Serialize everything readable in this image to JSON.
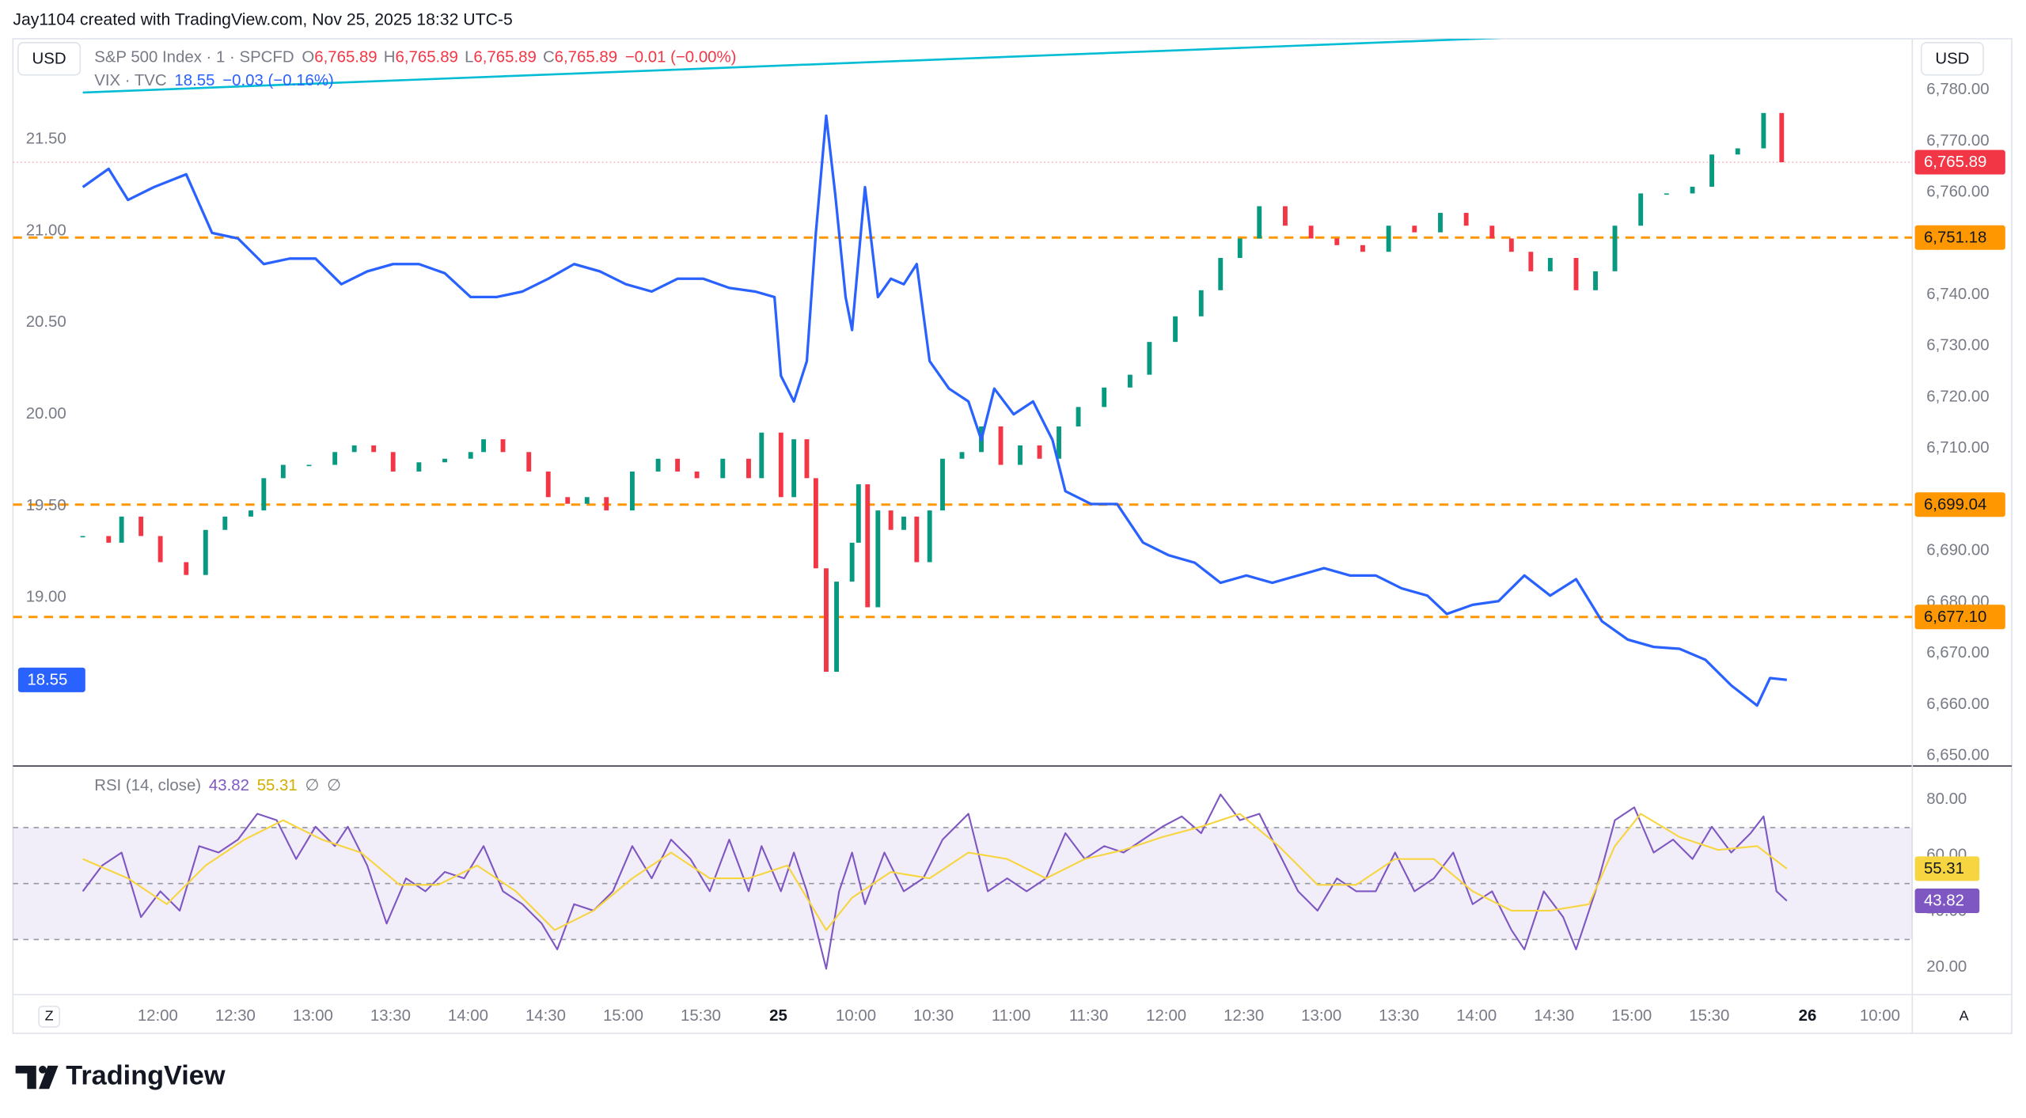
{
  "header": {
    "credit": "Jay1104 created with TradingView.com, Nov 25, 2025 18:32 UTC-5"
  },
  "chart_data": [
    {
      "type": "candlestick",
      "currency_left": "USD",
      "currency_right": "USD",
      "xlim": [
        94,
        828.5
      ],
      "xticks": [
        {
          "value": 150,
          "label": "12:00"
        },
        {
          "value": 180,
          "label": "12:30"
        },
        {
          "value": 210,
          "label": "13:00"
        },
        {
          "value": 240,
          "label": "13:30"
        },
        {
          "value": 270,
          "label": "14:00"
        },
        {
          "value": 300,
          "label": "14:30"
        },
        {
          "value": 330,
          "label": "15:00"
        },
        {
          "value": 360,
          "label": "15:30"
        },
        {
          "value": 390,
          "label": "25"
        },
        {
          "value": 420,
          "label": "10:00"
        },
        {
          "value": 450,
          "label": "10:30"
        },
        {
          "value": 480,
          "label": "11:00"
        },
        {
          "value": 510,
          "label": "11:30"
        },
        {
          "value": 540,
          "label": "12:00"
        },
        {
          "value": 570,
          "label": "12:30"
        },
        {
          "value": 600,
          "label": "13:00"
        },
        {
          "value": 630,
          "label": "13:30"
        },
        {
          "value": 660,
          "label": "14:00"
        },
        {
          "value": 690,
          "label": "14:30"
        },
        {
          "value": 720,
          "label": "15:00"
        },
        {
          "value": 750,
          "label": "15:30"
        },
        {
          "value": 788,
          "label": "26"
        },
        {
          "value": 816,
          "label": "10:00"
        }
      ],
      "ylim": [
        18.08,
        22.05
      ],
      "yticks": [
        {
          "value": 19,
          "label": "19.00"
        },
        {
          "value": 19.5,
          "label": "19.50"
        },
        {
          "value": 20,
          "label": "20.00"
        },
        {
          "value": 20.5,
          "label": "20.50"
        },
        {
          "value": 21,
          "label": "21.00"
        },
        {
          "value": 21.5,
          "label": "21.50"
        }
      ],
      "y2lim": [
        6648,
        6790
      ],
      "y2ticks": [
        {
          "value": 6650,
          "label": "6,650.00"
        },
        {
          "value": 6660,
          "label": "6,660.00"
        },
        {
          "value": 6670,
          "label": "6,670.00"
        },
        {
          "value": 6680,
          "label": "6,680.00"
        },
        {
          "value": 6690,
          "label": "6,690.00"
        },
        {
          "value": 6700,
          "label": "6,700.00"
        },
        {
          "value": 6710,
          "label": "6,710.00"
        },
        {
          "value": 6720,
          "label": "6,720.00"
        },
        {
          "value": 6730,
          "label": "6,730.00"
        },
        {
          "value": 6740,
          "label": "6,740.00"
        },
        {
          "value": 6750,
          "label": "6,750.00"
        },
        {
          "value": 6760,
          "label": "6,760.00"
        },
        {
          "value": 6770,
          "label": "6,770.00"
        },
        {
          "value": 6780,
          "label": "6,780.00"
        }
      ],
      "series": [
        {
          "name": "S&P 500 Index · 1 · SPCFD",
          "type": "candlestick",
          "axis": "y2",
          "up_color": "#089981",
          "down_color": "#f23645",
          "price_line_color": "#f23645",
          "ohlc": [
            {
              "key": "O",
              "label": "6,765.89"
            },
            {
              "key": "H",
              "label": "6,765.89"
            },
            {
              "key": "L",
              "label": "6,765.89"
            },
            {
              "key": "C",
              "label": "6,765.89"
            }
          ],
          "change": "−0.01 (−0.00%)",
          "last_label": "6,765.89",
          "x": [
            121,
            131,
            136,
            143.5,
            151,
            161,
            168.5,
            176,
            186,
            191,
            198.5,
            208.5,
            218.5,
            226,
            233.5,
            241,
            251,
            261,
            271,
            276,
            283.5,
            293.5,
            301,
            308.5,
            316,
            323.5,
            333.5,
            343.5,
            351,
            358.5,
            368.5,
            378.5,
            383.5,
            391,
            396,
            401,
            404.5,
            408.5,
            412.5,
            418.5,
            421,
            424.5,
            428.5,
            433.5,
            438.5,
            443.5,
            448.5,
            453.5,
            461,
            468.5,
            476,
            483.5,
            491,
            498.5,
            506,
            516,
            526,
            533.5,
            543.5,
            553.5,
            561,
            568.5,
            576,
            586,
            596,
            606,
            616,
            626,
            636,
            646,
            656,
            666,
            673.5,
            681,
            688.5,
            698.5,
            706,
            713.5,
            723.5,
            733.5,
            743.5,
            751,
            761,
            771,
            778
          ],
          "values": [
            6692.9,
            6691.6,
            6696.7,
            6692.9,
            6687.8,
            6685.3,
            6694.1,
            6696.7,
            6697.9,
            6704.2,
            6706.8,
            6706.8,
            6709.3,
            6710.6,
            6709.3,
            6705.5,
            6707.3,
            6708.0,
            6709.3,
            6711.8,
            6709.3,
            6705.5,
            6700.5,
            6699.2,
            6700.5,
            6697.9,
            6705.5,
            6708.0,
            6705.5,
            6704.2,
            6708.0,
            6704.2,
            6713.1,
            6700.5,
            6711.8,
            6704.2,
            6686.6,
            6666.4,
            6684.0,
            6691.6,
            6703.0,
            6679.0,
            6697.9,
            6694.1,
            6696.7,
            6687.8,
            6697.9,
            6708.0,
            6709.3,
            6714.3,
            6706.8,
            6710.6,
            6708.0,
            6714.3,
            6718.1,
            6721.9,
            6724.4,
            6730.8,
            6735.8,
            6740.9,
            6747.2,
            6751.0,
            6757.3,
            6753.5,
            6751.0,
            6749.7,
            6748.4,
            6753.5,
            6752.2,
            6756.0,
            6753.5,
            6751.0,
            6748.4,
            6744.6,
            6747.2,
            6740.9,
            6744.6,
            6753.5,
            6759.8,
            6759.8,
            6761.1,
            6767.4,
            6768.6,
            6775.5,
            6765.89
          ]
        },
        {
          "name": "VIX · TVC",
          "type": "line",
          "axis": "y",
          "color": "#2962ff",
          "change": "−0.03 (−0.16%)",
          "x": [
            121,
            131,
            138.5,
            148.5,
            161,
            171,
            181,
            191,
            201,
            211,
            221,
            231,
            241,
            251,
            261,
            271,
            281,
            291,
            301,
            311,
            321,
            331,
            341,
            351,
            361,
            371,
            381,
            388.5,
            391,
            396,
            401,
            404.5,
            408.5,
            412,
            416,
            418.5,
            423.5,
            428.5,
            433.5,
            438.5,
            443.5,
            448.5,
            456,
            463.5,
            468.5,
            473.5,
            481,
            488.5,
            496,
            501,
            511,
            521,
            531,
            541,
            551,
            561,
            571,
            581,
            591,
            601,
            611,
            621,
            631,
            641,
            648.5,
            658.5,
            668.5,
            678.5,
            688.5,
            698.5,
            708.5,
            718.5,
            728.5,
            738.5,
            748.5,
            758.5,
            768.5,
            773.5,
            780
          ],
          "values": [
            21.24,
            21.34,
            21.17,
            21.24,
            21.31,
            20.99,
            20.96,
            20.82,
            20.85,
            20.85,
            20.71,
            20.78,
            20.82,
            20.82,
            20.77,
            20.64,
            20.64,
            20.67,
            20.74,
            20.82,
            20.78,
            20.71,
            20.67,
            20.74,
            20.74,
            20.69,
            20.67,
            20.64,
            20.21,
            20.07,
            20.29,
            20.99,
            21.63,
            21.2,
            20.64,
            20.46,
            21.24,
            20.64,
            20.74,
            20.71,
            20.82,
            20.29,
            20.14,
            20.07,
            19.86,
            20.14,
            20.0,
            20.07,
            19.86,
            19.58,
            19.51,
            19.51,
            19.3,
            19.23,
            19.19,
            19.08,
            19.12,
            19.08,
            19.12,
            19.16,
            19.12,
            19.12,
            19.05,
            19.01,
            18.91,
            18.96,
            18.98,
            19.12,
            19.01,
            19.1,
            18.87,
            18.77,
            18.73,
            18.72,
            18.66,
            18.52,
            18.41,
            18.56,
            18.55
          ]
        }
      ],
      "hlines": [
        {
          "value": 6751.18,
          "label": "6,751.18"
        },
        {
          "value": 6699.04,
          "label": "6,699.04"
        },
        {
          "value": 6677.1,
          "label": "6,677.10"
        }
      ],
      "hline_color": "#ff9800",
      "trendline": {
        "color": "#00bcd4",
        "x": [
          121,
          691
        ],
        "values": [
          6779.5,
          6790.6
        ]
      }
    },
    {
      "type": "line",
      "title": "RSI (14, close)",
      "ylim": [
        10.3,
        92
      ],
      "yticks": [
        {
          "value": 20,
          "label": "20.00"
        },
        {
          "value": 40,
          "label": "40.00"
        },
        {
          "value": 60,
          "label": "60.00"
        },
        {
          "value": 80,
          "label": "80.00"
        }
      ],
      "levels": [
        70,
        50,
        30
      ],
      "band_color": "#7e57c2",
      "legend_extra": [
        "∅",
        "∅"
      ],
      "series": [
        {
          "color": "#7e57c2",
          "text_color": "#7e57c2",
          "x": [
            121,
            128.5,
            136,
            143.5,
            151,
            158.5,
            166,
            173.5,
            181,
            188.5,
            196,
            203.5,
            211,
            218.5,
            223.5,
            231,
            238.5,
            246,
            253.5,
            261,
            268.5,
            276,
            283.5,
            291,
            298.5,
            304.5,
            311,
            318.5,
            326,
            333.5,
            341,
            348.5,
            356,
            363.5,
            371,
            378.5,
            383.5,
            391,
            396,
            401,
            406,
            408.5,
            413.5,
            418.5,
            423.5,
            431,
            438.5,
            446,
            453.5,
            463.5,
            471,
            478.5,
            486,
            493.5,
            501,
            508.5,
            516,
            523.5,
            531,
            538.5,
            546,
            553.5,
            561,
            568.5,
            576,
            583.5,
            591,
            598.5,
            606,
            613.5,
            621,
            628.5,
            636,
            643.5,
            651,
            658.5,
            666,
            673.5,
            678.5,
            686,
            693.5,
            698.5,
            706,
            713.5,
            721,
            728.5,
            736,
            743.5,
            751,
            758.5,
            766,
            771,
            776,
            780
          ],
          "values": [
            47.23,
            56.46,
            61.08,
            38.0,
            47.23,
            40.31,
            63.38,
            61.08,
            65.69,
            74.92,
            72.62,
            58.77,
            70.31,
            63.38,
            70.31,
            56.46,
            35.69,
            51.85,
            47.23,
            54.15,
            51.85,
            63.38,
            47.23,
            42.62,
            35.69,
            26.46,
            42.62,
            40.31,
            47.23,
            63.38,
            51.85,
            65.69,
            58.77,
            47.23,
            65.69,
            47.23,
            63.38,
            47.23,
            61.08,
            47.23,
            28.77,
            19.54,
            47.23,
            61.08,
            42.62,
            61.08,
            47.23,
            51.85,
            65.69,
            74.92,
            47.23,
            51.85,
            47.23,
            51.85,
            68.0,
            58.77,
            63.38,
            61.08,
            65.69,
            70.31,
            74.0,
            68.0,
            81.85,
            72.62,
            74.92,
            61.08,
            47.23,
            40.31,
            51.85,
            47.23,
            47.23,
            61.08,
            47.23,
            51.85,
            61.08,
            42.62,
            47.23,
            33.38,
            26.46,
            47.23,
            38.0,
            26.46,
            47.23,
            72.62,
            77.23,
            61.08,
            65.69,
            58.77,
            70.31,
            61.08,
            68.0,
            74.0,
            47.23,
            43.82
          ]
        },
        {
          "color": "#f7d540",
          "text_color": "#d4ad00",
          "x": [
            121,
            138.5,
            153.5,
            168.5,
            183.5,
            198.5,
            213.5,
            228.5,
            243.5,
            258.5,
            273.5,
            288.5,
            303.5,
            318.5,
            333.5,
            348.5,
            363.5,
            378.5,
            393.5,
            408.5,
            418.5,
            433.5,
            448.5,
            463.5,
            478.5,
            493.5,
            508.5,
            523.5,
            538.5,
            553.5,
            568.5,
            583.5,
            598.5,
            613.5,
            628.5,
            643.5,
            658.5,
            673.5,
            688.5,
            703.5,
            713.5,
            723.5,
            738.5,
            753.5,
            768.5,
            780
          ],
          "values": [
            58.77,
            51.85,
            42.62,
            56.46,
            65.69,
            72.62,
            65.69,
            61.08,
            49.54,
            49.54,
            56.46,
            47.23,
            33.38,
            40.31,
            51.85,
            61.08,
            51.85,
            51.85,
            56.46,
            33.38,
            44.92,
            54.15,
            51.85,
            61.08,
            58.77,
            51.85,
            58.77,
            62.0,
            66.62,
            70.31,
            74.92,
            63.38,
            49.54,
            49.54,
            58.77,
            58.77,
            47.23,
            40.31,
            40.31,
            42.62,
            63.38,
            74.92,
            66.62,
            62.0,
            63.38,
            55.31
          ]
        }
      ]
    }
  ],
  "axis_corner": {
    "left": "Z",
    "right": "A"
  },
  "footer": {
    "logo": "TradingView"
  }
}
